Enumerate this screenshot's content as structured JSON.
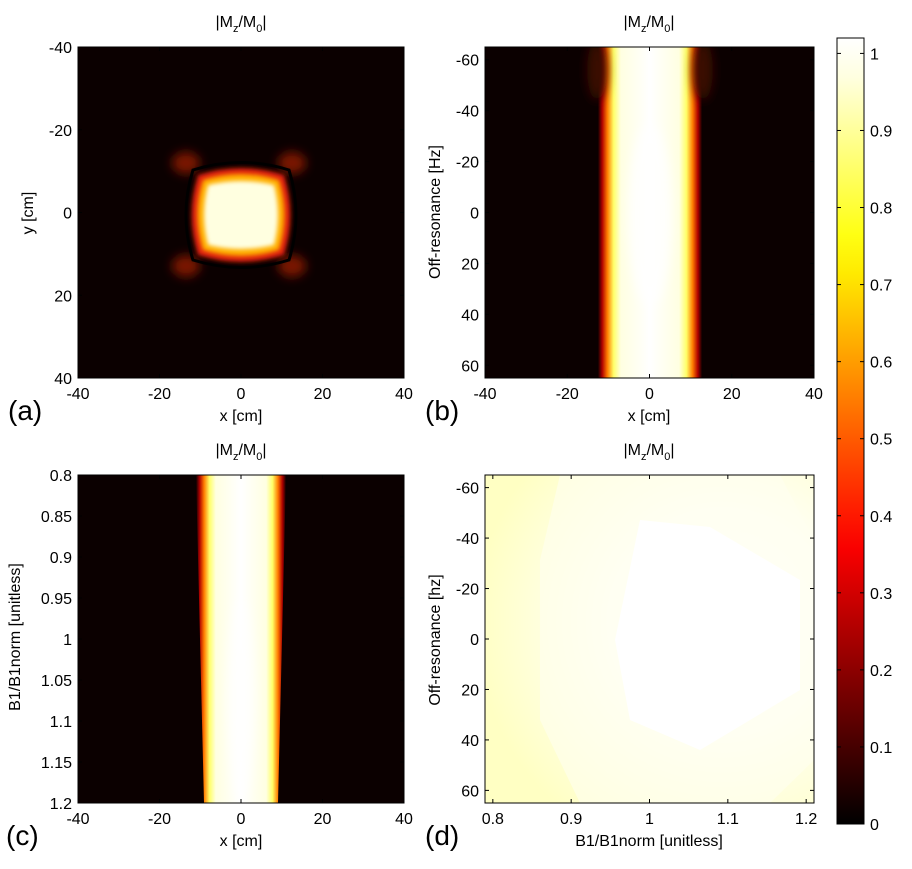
{
  "figure": {
    "panel_title_parts": {
      "m": "|M",
      "z": "z",
      "slash": "/M",
      "zero": "0",
      "end": "|"
    }
  },
  "chart_data": [
    {
      "type": "heatmap",
      "panel_label": "(a)",
      "title": "|Mz/M0|",
      "xlabel": "x [cm]",
      "ylabel": "y [cm]",
      "xlim": [
        -40,
        40
      ],
      "ylim": [
        -40,
        40
      ],
      "y_reversed": true,
      "xticks": [
        -40,
        -20,
        0,
        20,
        40
      ],
      "yticks": [
        -40,
        -20,
        0,
        20,
        40
      ],
      "description_values": {
        "pattern": "square-star",
        "peak": 1.0,
        "half_width_cm": 8
      }
    },
    {
      "type": "heatmap",
      "panel_label": "(b)",
      "title": "|Mz/M0|",
      "xlabel": "x [cm]",
      "ylabel": "Off-resonance [Hz]",
      "xlim": [
        -40,
        40
      ],
      "ylim": [
        -65,
        65
      ],
      "y_reversed": true,
      "xticks": [
        -40,
        -20,
        0,
        20,
        40
      ],
      "yticks": [
        -60,
        -40,
        -20,
        0,
        20,
        40,
        60
      ],
      "description_values": {
        "pattern": "vertical-band",
        "peak": 1.0,
        "half_width_cm": 9
      }
    },
    {
      "type": "heatmap",
      "panel_label": "(c)",
      "title": "|Mz/M0|",
      "xlabel": "x [cm]",
      "ylabel": "B1/B1norm [unitless]",
      "xlim": [
        -40,
        40
      ],
      "ylim": [
        0.8,
        1.2
      ],
      "y_reversed": true,
      "xticks": [
        -40,
        -20,
        0,
        20,
        40
      ],
      "yticks": [
        "0.8",
        "0.85",
        "0.9",
        "0.95",
        "1",
        "1.05",
        "1.1",
        "1.15",
        "1.2"
      ],
      "description_values": {
        "pattern": "tapered-band",
        "peak": 1.0,
        "half_width_top_cm": 9,
        "half_width_bottom_cm": 7
      }
    },
    {
      "type": "heatmap",
      "panel_label": "(d)",
      "title": "|Mz/M0|",
      "xlabel": "B1/B1norm [unitless]",
      "ylabel": "Off-resonance [hz]",
      "xlim": [
        0.79,
        1.21
      ],
      "ylim": [
        -65,
        65
      ],
      "y_reversed": true,
      "xticks": [
        "0.8",
        "0.9",
        "1",
        "1.1",
        "1.2"
      ],
      "yticks": [
        -60,
        -40,
        -20,
        0,
        20,
        40,
        60
      ],
      "description_values": {
        "pattern": "near-uniform",
        "min": 0.93,
        "max": 1.0,
        "center_b1": 1.07
      }
    }
  ],
  "colorbar": {
    "colormap": "hot",
    "range": [
      0,
      1.02
    ],
    "ticks": [
      "0",
      "0.1",
      "0.2",
      "0.3",
      "0.4",
      "0.5",
      "0.6",
      "0.7",
      "0.8",
      "0.9",
      "1"
    ]
  }
}
